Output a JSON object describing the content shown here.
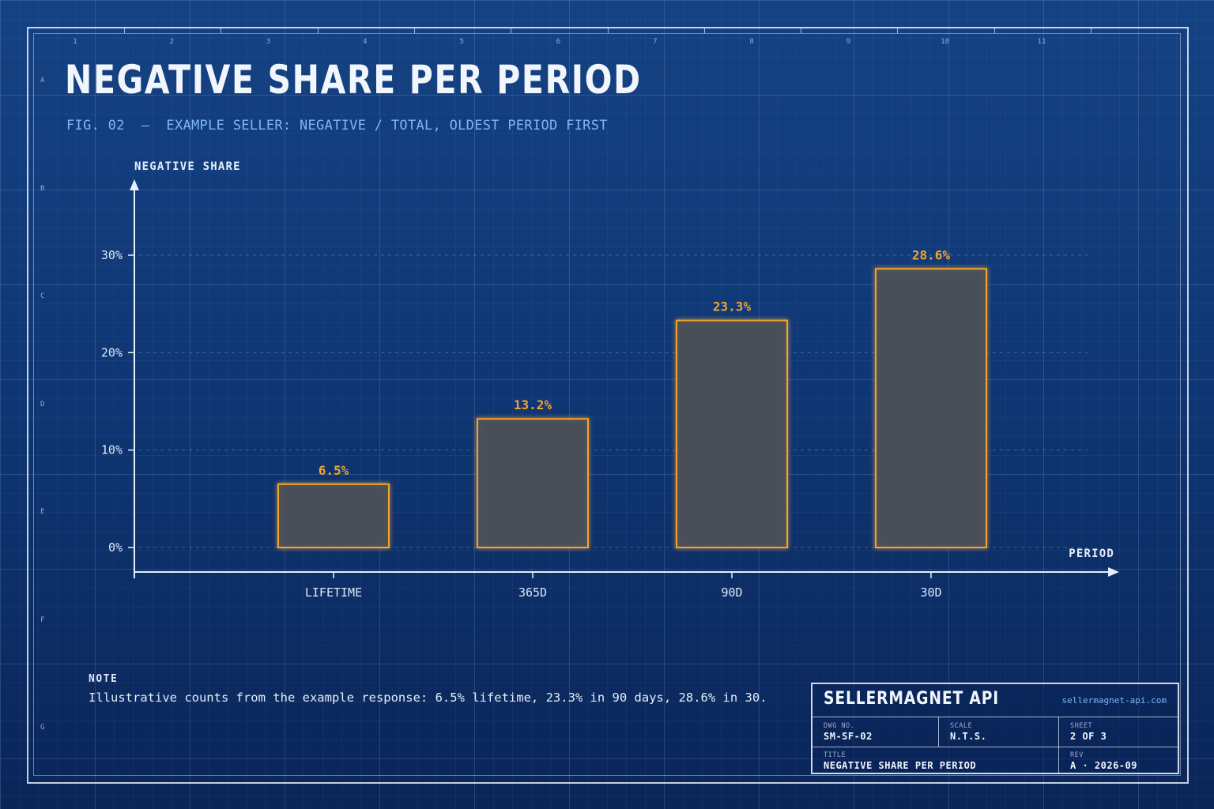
{
  "header": {
    "title": "NEGATIVE SHARE PER PERIOD",
    "subtitle": "FIG. 02  —  EXAMPLE SELLER: NEGATIVE / TOTAL, OLDEST PERIOD FIRST"
  },
  "rulers": {
    "columns": [
      "1",
      "2",
      "3",
      "4",
      "5",
      "6",
      "7",
      "8",
      "9",
      "10",
      "11"
    ],
    "rows": [
      "A",
      "B",
      "C",
      "D",
      "E",
      "F",
      "G"
    ]
  },
  "chart_data": {
    "type": "bar",
    "categories": [
      "LIFETIME",
      "365D",
      "90D",
      "30D"
    ],
    "values": [
      6.5,
      13.2,
      23.3,
      28.6
    ],
    "value_labels": [
      "6.5%",
      "13.2%",
      "23.3%",
      "28.6%"
    ],
    "ylabel": "NEGATIVE SHARE",
    "xlabel": "PERIOD",
    "yticks": [
      0,
      10,
      20,
      30
    ],
    "ytick_labels": [
      "0%",
      "10%",
      "20%",
      "30%"
    ],
    "ylim": [
      0,
      30
    ],
    "grid": "horizontal dashed",
    "colors": {
      "bar_stroke": "#f2a52d",
      "bar_fill": "#4a4f58",
      "value_label": "#f2a52d",
      "axis": "#e6eefb"
    }
  },
  "note": {
    "label": "NOTE",
    "text": "Illustrative counts from the example response: 6.5% lifetime, 23.3% in 90 days, 28.6% in 30."
  },
  "title_block": {
    "brand": "SELLERMAGNET API",
    "url": "sellermagnet-api.com",
    "dwg_label": "DWG NO.",
    "dwg_value": "SM-SF-02",
    "scale_label": "SCALE",
    "scale_value": "N.T.S.",
    "sheet_label": "SHEET",
    "sheet_value": "2 OF 3",
    "title_label": "TITLE",
    "title_value": "NEGATIVE SHARE PER PERIOD",
    "rev_label": "REV",
    "rev_value": "A · 2026-09"
  }
}
